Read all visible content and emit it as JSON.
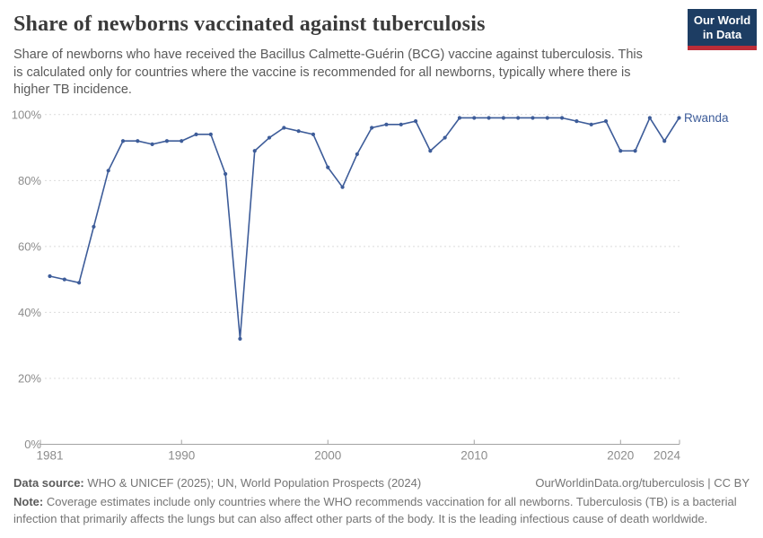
{
  "header": {
    "title": "Share of newborns vaccinated against tuberculosis",
    "subtitle": "Share of newborns who have received the Bacillus Calmette-Guérin (BCG) vaccine against tuberculosis. This is calculated only for countries where the vaccine is recommended for all newborns, typically where there is higher TB incidence.",
    "logo": {
      "line1": "Our World",
      "line2": "in Data"
    }
  },
  "chart_data": {
    "type": "line",
    "title": "Share of newborns vaccinated against tuberculosis",
    "entity": "Rwanda",
    "xlim": [
      1981,
      2024
    ],
    "ylim": [
      0,
      100
    ],
    "x_ticks": [
      1981,
      1990,
      2000,
      2010,
      2020,
      2024
    ],
    "x_tick_marks": [
      1990,
      2000,
      2010,
      2020
    ],
    "y_ticks": [
      0,
      20,
      40,
      60,
      80,
      100
    ],
    "y_tick_suffix": "%",
    "grid": "horizontal-dashed",
    "legend_position": "end-of-line-label",
    "series": [
      {
        "name": "Rwanda",
        "color": "#3d5c99",
        "x": [
          1981,
          1982,
          1983,
          1984,
          1985,
          1986,
          1987,
          1988,
          1989,
          1990,
          1991,
          1992,
          1993,
          1994,
          1995,
          1996,
          1997,
          1998,
          1999,
          2000,
          2001,
          2002,
          2003,
          2004,
          2005,
          2006,
          2007,
          2008,
          2009,
          2010,
          2011,
          2012,
          2013,
          2014,
          2015,
          2016,
          2017,
          2018,
          2019,
          2020,
          2021,
          2022,
          2023,
          2024
        ],
        "values": [
          51,
          50,
          49,
          66,
          83,
          92,
          92,
          91,
          92,
          92,
          94,
          94,
          82,
          32,
          89,
          93,
          96,
          95,
          94,
          84,
          78,
          88,
          96,
          97,
          97,
          98,
          89,
          93,
          99,
          99,
          99,
          99,
          99,
          99,
          99,
          99,
          98,
          97,
          98,
          89,
          89,
          99,
          92,
          99
        ]
      }
    ]
  },
  "footer": {
    "datasource_label": "Data source:",
    "datasource_text": " WHO & UNICEF (2025); UN, World Population Prospects (2024)",
    "attribution": "OurWorldinData.org/tuberculosis | CC BY",
    "note_label": "Note:",
    "note_text": " Coverage estimates include only countries where the WHO recommends vaccination for all newborns. Tuberculosis (TB) is a bacterial infection that primarily affects the lungs but can also affect other parts of the body. It is the leading infectious cause of death worldwide."
  },
  "colors": {
    "line": "#3d5c99",
    "title_text": "#3a3a3a",
    "subtitle_text": "#5a5a5a",
    "axis_label": "#8c8c8c",
    "gridline": "#dcdcdc",
    "axis_line": "#a3a3a3",
    "footer_text": "#757575",
    "logo_navy": "#1d3d63",
    "logo_red": "#bc2d38"
  }
}
